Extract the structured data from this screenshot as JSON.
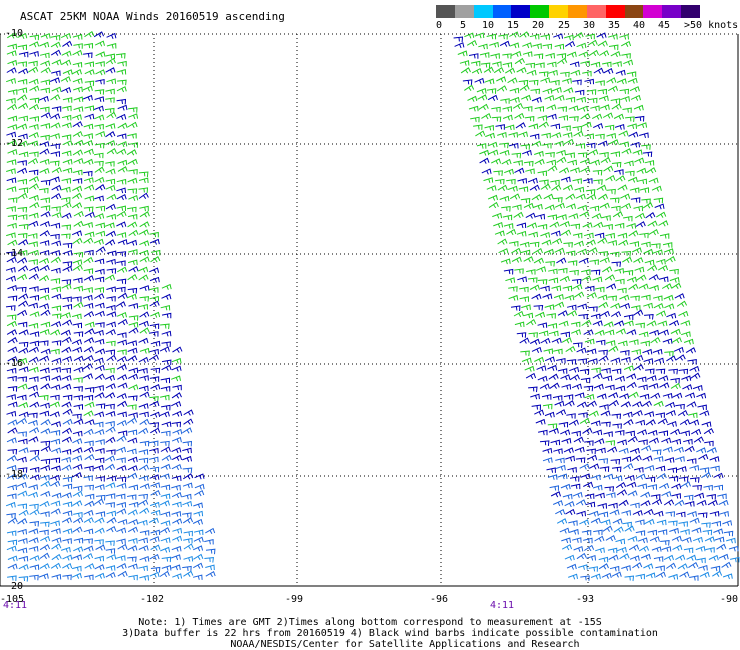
{
  "title": "ASCAT 25KM NOAA Winds 20160519 ascending",
  "legend": {
    "colors": [
      "#555555",
      "#a0a0a0",
      "#00c8ff",
      "#0060ff",
      "#0000c8",
      "#00c800",
      "#ffd200",
      "#ff9600",
      "#ff6464",
      "#ff0000",
      "#8b4513",
      "#d200d2",
      "#7800c8",
      "#32006e"
    ],
    "labels": [
      "0",
      "5",
      "10",
      "15",
      "20",
      "25",
      "30",
      "35",
      "40",
      "45",
      ">50 knots"
    ]
  },
  "axes": {
    "lat_ticks": [
      "-10",
      "-12",
      "-14",
      "-16",
      "-18",
      "-20"
    ],
    "lon_ticks": [
      "-105",
      "-102",
      "-99",
      "-96",
      "-93",
      "-90"
    ]
  },
  "times": {
    "left_swath": "4:11",
    "right_swath": "4:11"
  },
  "notes": {
    "line1": "Note: 1) Times are GMT 2)Times along bottom correspond to measurement at -15S",
    "line2": "3)Data buffer is 22 hrs from 20160519 4) Black wind barbs indicate possible contamination",
    "line3": "NOAA/NESDIS/Center for Satellite Applications and Research"
  },
  "barb_colors": {
    "green": "#22cc22",
    "dark_blue": "#0000b4",
    "blue": "#1e64dc",
    "light_blue": "#1e8ce6"
  }
}
